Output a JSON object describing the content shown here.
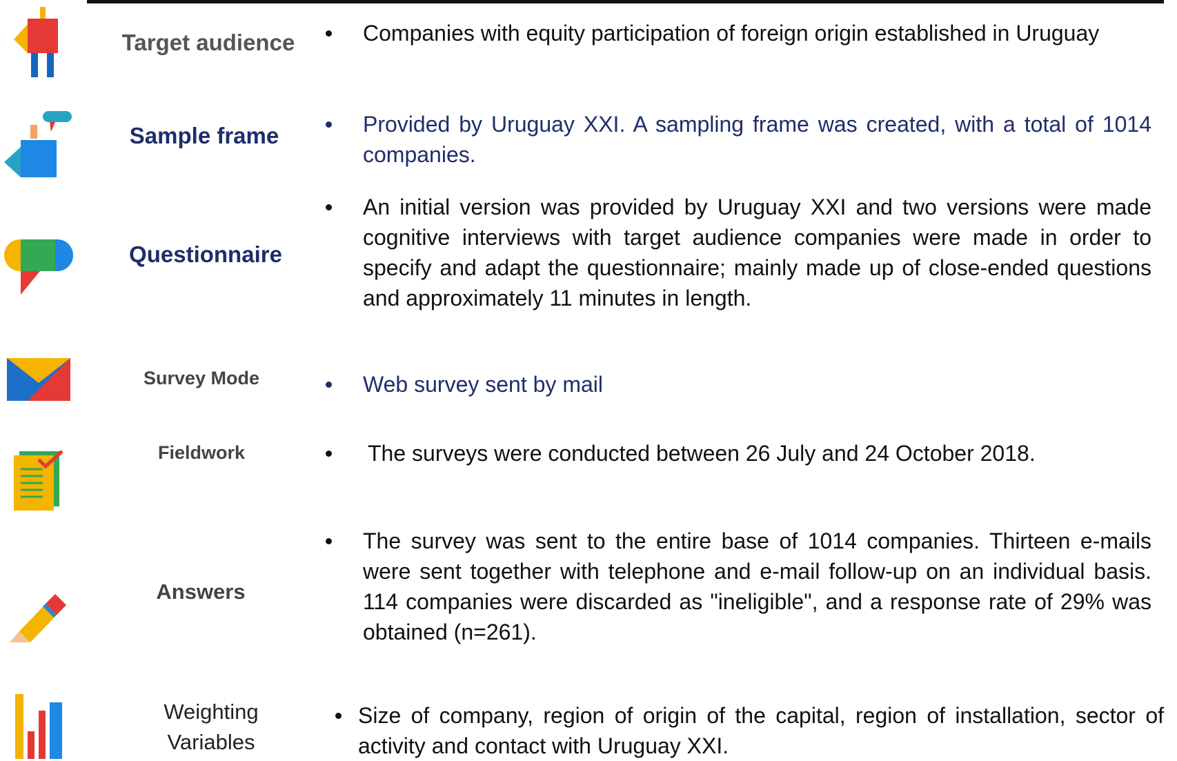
{
  "rows": [
    {
      "label": "Target audience",
      "text": "Companies with equity participation of foreign origin established in Uruguay"
    },
    {
      "label": "Sample frame",
      "text": "Provided by Uruguay XXI. A sampling frame was created, with a total of 1014 companies."
    },
    {
      "label": "Questionnaire",
      "text": "An initial version was provided by Uruguay XXI and two versions were made cognitive interviews with target audience companies were made in order to specify and adapt the questionnaire;  mainly made up of close-ended questions and approximately 11 minutes in length."
    },
    {
      "label": "Survey Mode",
      "text": "Web survey sent by mail"
    },
    {
      "label": "Fieldwork",
      "text": "The surveys were conducted between 26 July and 24 October 2018."
    },
    {
      "label": "Answers",
      "text": "The survey was sent to the entire base of 1014 companies. Thirteen e-mails were sent together with telephone and e-mail follow-up on an individual basis. 114 companies were discarded as \"ineligible\", and a response rate of 29% was obtained (n=261)."
    },
    {
      "label": "Weighting Variables",
      "text": "Size of company, region of origin of the capital, region of installation, sector of activity and contact with Uruguay XXI."
    }
  ]
}
